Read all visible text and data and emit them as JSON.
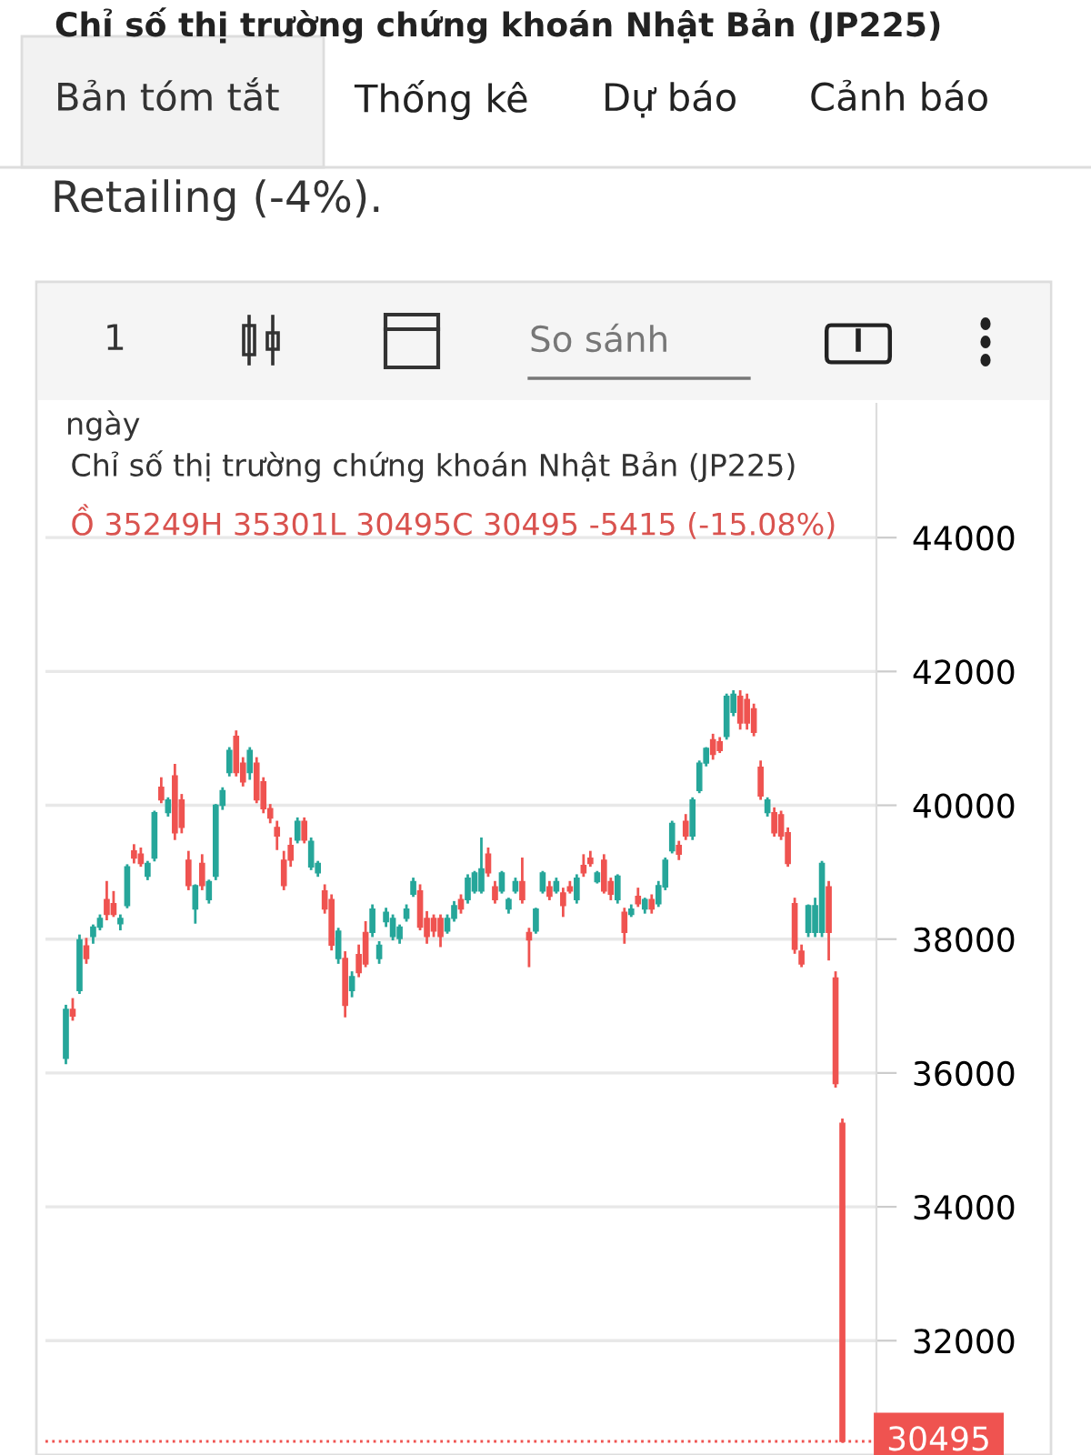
{
  "chart_data": {
    "type": "candlestick",
    "title": "Chỉ số thị trường chứng khoán Nhật Bản (JP225)",
    "subtitle": "Ồ 35249H 35301L 30495C 30495 -5415 (-15.08%)",
    "annotations": [
      "Chỉ số thị trường chứng khoán Nhật Bản (JP225)",
      "Bản tóm tắt",
      "Thống kê",
      "Dự báo",
      "Cảnh báo",
      "Retailing (-4%).",
      "1",
      "So sánh",
      "ngày"
    ],
    "categories": [
      null,
      null,
      null,
      null,
      null,
      null,
      null,
      null,
      null,
      null,
      null,
      null,
      null,
      null,
      null,
      null,
      null,
      null,
      null,
      null,
      null,
      null,
      null,
      null,
      null,
      null,
      null,
      null,
      null,
      null,
      null,
      null,
      null,
      null,
      null,
      null,
      null,
      null,
      null,
      null,
      null,
      null,
      null,
      null,
      null,
      null,
      null,
      null,
      null,
      null,
      null,
      null,
      null,
      null,
      null,
      null,
      null,
      null,
      null,
      null,
      null,
      null,
      null,
      null,
      null,
      null,
      null,
      null,
      null,
      null,
      null,
      null,
      null,
      null,
      null,
      null,
      null,
      null,
      null,
      null,
      null,
      null,
      null,
      null,
      null,
      null,
      null,
      null,
      null,
      null,
      null,
      null,
      null,
      null,
      null,
      null,
      null,
      null,
      null,
      null,
      null,
      null,
      null,
      null,
      null,
      null,
      null,
      null,
      null,
      null,
      null,
      null,
      null,
      null,
      null
    ],
    "ohlc": [
      [
        36220,
        37000,
        36150,
        36950
      ],
      [
        36950,
        37100,
        36800,
        36850
      ],
      [
        37230,
        38050,
        37200,
        37990
      ],
      [
        37900,
        38000,
        37650,
        37710
      ],
      [
        38040,
        38200,
        37950,
        38180
      ],
      [
        38180,
        38350,
        38150,
        38310
      ],
      [
        38590,
        38850,
        38300,
        38370
      ],
      [
        38530,
        38700,
        38350,
        38370
      ],
      [
        38230,
        38350,
        38150,
        38310
      ],
      [
        38500,
        39100,
        38480,
        39080
      ],
      [
        39320,
        39400,
        39150,
        39210
      ],
      [
        39270,
        39350,
        39100,
        39130
      ],
      [
        38940,
        39150,
        38900,
        39130
      ],
      [
        39210,
        39900,
        39180,
        39890
      ],
      [
        40270,
        40400,
        40050,
        40080
      ],
      [
        39890,
        40100,
        39850,
        40080
      ],
      [
        40440,
        40600,
        39500,
        39590
      ],
      [
        40080,
        40150,
        39600,
        39670
      ],
      [
        39180,
        39300,
        38750,
        38800
      ],
      [
        38450,
        38800,
        38250,
        38800
      ],
      [
        39130,
        39250,
        38750,
        38800
      ],
      [
        38590,
        38870,
        38550,
        38860
      ],
      [
        38940,
        40000,
        38900,
        40000
      ],
      [
        40000,
        40250,
        39950,
        40220
      ],
      [
        40490,
        40850,
        40450,
        40820
      ],
      [
        41030,
        41100,
        40450,
        40490
      ],
      [
        40630,
        40700,
        40300,
        40350
      ],
      [
        40490,
        40850,
        40400,
        40820
      ],
      [
        40630,
        40700,
        40050,
        40080
      ],
      [
        40350,
        40400,
        39900,
        39950
      ],
      [
        39950,
        40000,
        39750,
        39810
      ],
      [
        39670,
        39750,
        39350,
        39540
      ],
      [
        39180,
        39300,
        38750,
        38800
      ],
      [
        39400,
        39500,
        39100,
        39180
      ],
      [
        39480,
        39800,
        39450,
        39760
      ],
      [
        39760,
        39800,
        39450,
        39480
      ],
      [
        39080,
        39500,
        39050,
        39460
      ],
      [
        38990,
        39150,
        38950,
        39130
      ],
      [
        38720,
        38800,
        38400,
        38450
      ],
      [
        38590,
        38650,
        37850,
        37910
      ],
      [
        37710,
        38150,
        37650,
        38120
      ],
      [
        37710,
        37800,
        36850,
        37010
      ],
      [
        37230,
        37500,
        37150,
        37440
      ],
      [
        37770,
        37900,
        37450,
        37500
      ],
      [
        38100,
        38250,
        37600,
        37630
      ],
      [
        38100,
        38500,
        38050,
        38450
      ],
      [
        37710,
        37950,
        37650,
        37910
      ],
      [
        38260,
        38450,
        38200,
        38400
      ],
      [
        38040,
        38350,
        38000,
        38310
      ],
      [
        38010,
        38200,
        37950,
        38180
      ],
      [
        38310,
        38500,
        38280,
        38450
      ],
      [
        38670,
        38900,
        38650,
        38860
      ],
      [
        38720,
        38800,
        38150,
        38180
      ],
      [
        38310,
        38400,
        37950,
        38040
      ],
      [
        38310,
        38350,
        38050,
        38120
      ],
      [
        38310,
        38350,
        37900,
        38040
      ],
      [
        38120,
        38350,
        38100,
        38310
      ],
      [
        38310,
        38550,
        38280,
        38500
      ],
      [
        38590,
        38650,
        38400,
        38450
      ],
      [
        38590,
        38950,
        38550,
        38910
      ],
      [
        38720,
        39000,
        38700,
        38990
      ],
      [
        38720,
        39500,
        38700,
        39050
      ],
      [
        39270,
        39350,
        38950,
        38990
      ],
      [
        38780,
        38850,
        38550,
        38590
      ],
      [
        38720,
        39000,
        38700,
        38990
      ],
      [
        38450,
        38600,
        38400,
        38590
      ],
      [
        38720,
        38900,
        38700,
        38860
      ],
      [
        38860,
        39200,
        38550,
        38590
      ],
      [
        38100,
        38150,
        37600,
        37990
      ],
      [
        38120,
        38450,
        38100,
        38450
      ],
      [
        38720,
        39000,
        38700,
        38990
      ],
      [
        38780,
        38850,
        38600,
        38640
      ],
      [
        38720,
        38900,
        38700,
        38860
      ],
      [
        38690,
        38750,
        38350,
        38500
      ],
      [
        38780,
        38850,
        38700,
        38720
      ],
      [
        38590,
        38950,
        38550,
        38910
      ],
      [
        39100,
        39250,
        38950,
        38990
      ],
      [
        39210,
        39300,
        39100,
        39130
      ],
      [
        38860,
        39000,
        38850,
        38990
      ],
      [
        39180,
        39250,
        38700,
        38720
      ],
      [
        38860,
        38900,
        38600,
        38670
      ],
      [
        38590,
        38950,
        38550,
        38940
      ],
      [
        38400,
        38450,
        37950,
        38100
      ],
      [
        38370,
        38500,
        38350,
        38450
      ],
      [
        38640,
        38750,
        38500,
        38530
      ],
      [
        38450,
        38600,
        38400,
        38590
      ],
      [
        38590,
        38650,
        38400,
        38450
      ],
      [
        38530,
        38850,
        38500,
        38800
      ],
      [
        38780,
        39200,
        38750,
        39180
      ],
      [
        39320,
        39750,
        39300,
        39730
      ],
      [
        39400,
        39450,
        39200,
        39270
      ],
      [
        39760,
        39850,
        39500,
        39540
      ],
      [
        39540,
        40100,
        39500,
        40080
      ],
      [
        40220,
        40650,
        40200,
        40630
      ],
      [
        40630,
        40850,
        40600,
        40850
      ],
      [
        40980,
        41050,
        40700,
        40760
      ],
      [
        40950,
        41000,
        40800,
        40820
      ],
      [
        41030,
        41650,
        41000,
        41630
      ],
      [
        41390,
        41700,
        41350,
        41660
      ],
      [
        41630,
        41700,
        41150,
        41230
      ],
      [
        41580,
        41650,
        41150,
        41230
      ],
      [
        41440,
        41500,
        41050,
        41090
      ],
      [
        40570,
        40650,
        40100,
        40140
      ],
      [
        39890,
        40100,
        39850,
        40080
      ],
      [
        39890,
        39950,
        39550,
        39590
      ],
      [
        39860,
        39900,
        39500,
        39540
      ],
      [
        39590,
        39650,
        39100,
        39130
      ],
      [
        38530,
        38600,
        37800,
        37850
      ],
      [
        37820,
        37900,
        37600,
        37630
      ],
      [
        38100,
        38500,
        38050,
        38500
      ],
      [
        38100,
        38600,
        38050,
        38500
      ],
      [
        38100,
        39150,
        38050,
        39130
      ],
      [
        38780,
        38850,
        37700,
        38100
      ],
      [
        37420,
        37500,
        35800,
        35840
      ],
      [
        35249,
        35301,
        30495,
        30495
      ]
    ],
    "colors": [
      "#26a69a",
      "#ef5350",
      "#26a69a",
      "#ef5350",
      "#26a69a",
      "#26a69a",
      "#ef5350",
      "#ef5350",
      "#26a69a",
      "#26a69a",
      "#ef5350",
      "#ef5350",
      "#26a69a",
      "#26a69a",
      "#ef5350",
      "#26a69a",
      "#ef5350",
      "#ef5350",
      "#ef5350",
      "#26a69a",
      "#ef5350",
      "#26a69a",
      "#26a69a",
      "#26a69a",
      "#26a69a",
      "#ef5350",
      "#ef5350",
      "#26a69a",
      "#ef5350",
      "#ef5350",
      "#ef5350",
      "#ef5350",
      "#ef5350",
      "#ef5350",
      "#26a69a",
      "#ef5350",
      "#26a69a",
      "#26a69a",
      "#ef5350",
      "#ef5350",
      "#26a69a",
      "#ef5350",
      "#26a69a",
      "#ef5350",
      "#ef5350",
      "#26a69a",
      "#26a69a",
      "#26a69a",
      "#26a69a",
      "#26a69a",
      "#26a69a",
      "#26a69a",
      "#ef5350",
      "#ef5350",
      "#ef5350",
      "#ef5350",
      "#26a69a",
      "#26a69a",
      "#ef5350",
      "#26a69a",
      "#26a69a",
      "#26a69a",
      "#ef5350",
      "#ef5350",
      "#26a69a",
      "#26a69a",
      "#26a69a",
      "#ef5350",
      "#ef5350",
      "#26a69a",
      "#26a69a",
      "#ef5350",
      "#26a69a",
      "#ef5350",
      "#ef5350",
      "#26a69a",
      "#ef5350",
      "#ef5350",
      "#26a69a",
      "#ef5350",
      "#ef5350",
      "#26a69a",
      "#ef5350",
      "#26a69a",
      "#ef5350",
      "#26a69a",
      "#ef5350",
      "#26a69a",
      "#26a69a",
      "#26a69a",
      "#ef5350",
      "#ef5350",
      "#26a69a",
      "#26a69a",
      "#26a69a",
      "#ef5350",
      "#ef5350",
      "#26a69a",
      "#26a69a",
      "#ef5350",
      "#ef5350",
      "#ef5350",
      "#ef5350",
      "#26a69a",
      "#ef5350",
      "#ef5350",
      "#ef5350",
      "#ef5350",
      "#ef5350",
      "#26a69a",
      "#26a69a",
      "#26a69a",
      "#ef5350",
      "#ef5350",
      "#ef5350"
    ],
    "ylim": [
      30400,
      46000
    ],
    "yticks": [
      32000,
      34000,
      36000,
      38000,
      40000,
      42000,
      44000
    ],
    "ref_lines": [
      {
        "axis": "y",
        "value": 30495,
        "label": "30495",
        "color": "#ef5350",
        "line_style": "dotted"
      }
    ],
    "tick_labels": "y",
    "grid": "y"
  }
}
